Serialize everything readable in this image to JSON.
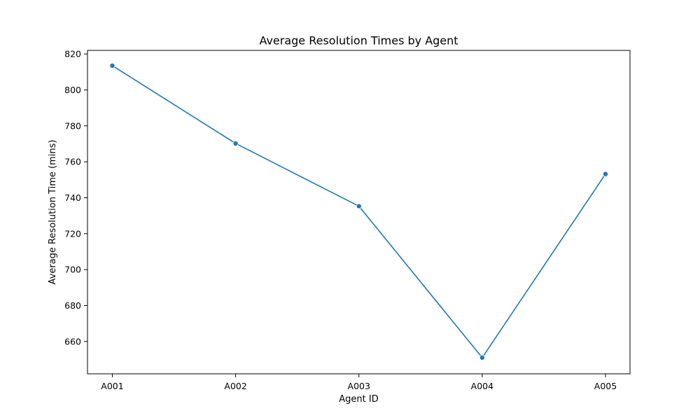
{
  "chart_data": {
    "type": "line",
    "title": "Average Resolution Times by Agent",
    "xlabel": "Agent ID",
    "ylabel": "Average Resolution Time (mins)",
    "categories": [
      "A001",
      "A002",
      "A003",
      "A004",
      "A005"
    ],
    "series": [
      {
        "values": [
          813.5,
          770.2,
          735.3,
          651.0,
          753.2
        ]
      }
    ],
    "ylim": [
      642,
      822
    ],
    "yticks": [
      660,
      680,
      700,
      720,
      740,
      760,
      780,
      800,
      820
    ],
    "grid": false,
    "legend": "none",
    "line_color": "#1f77b4",
    "marker": "circle"
  }
}
